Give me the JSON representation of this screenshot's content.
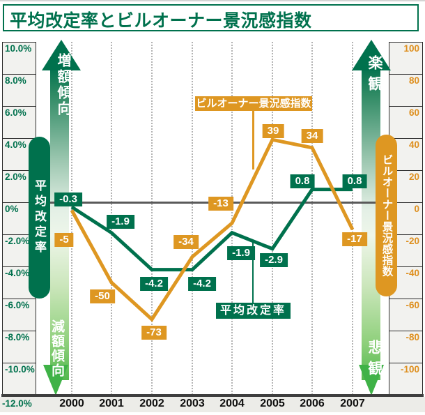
{
  "title": "平均改定率とビルオーナー景況感指数",
  "axes": {
    "left": {
      "labels": [
        "10.0%",
        "8.0%",
        "6.0%",
        "4.0%",
        "2.0%",
        "0%",
        "-2.0%",
        "-4.0%",
        "-6.0%",
        "-8.0%",
        "-10.0%"
      ],
      "bottom_label": "-12.0%"
    },
    "right": {
      "labels": [
        "100",
        "80",
        "60",
        "40",
        "20",
        "0",
        "-20",
        "-40",
        "-60",
        "-80",
        "-100"
      ]
    }
  },
  "annotations": {
    "left_up_arrow": "増額傾向",
    "left_down_arrow": "減額傾向",
    "right_up_arrow": "楽観",
    "right_down_arrow": "悲観",
    "left_capsule": "平均改定率",
    "right_capsule": "ビルオーナー景況感指数",
    "legend_green": "平均改定率",
    "legend_orange": "ビルオーナー景況感指数"
  },
  "colors": {
    "green": "#00714D",
    "orange": "#DE9722",
    "bright_green": "#3FB247",
    "axis_label_orange": "#DE8F1E"
  },
  "chart_data": {
    "type": "line",
    "categories": [
      "2000",
      "2001",
      "2002",
      "2003",
      "2004",
      "2005",
      "2006",
      "2007"
    ],
    "series": [
      {
        "name": "平均改定率",
        "axis": "left",
        "color": "#00714D",
        "values": [
          -0.3,
          -1.9,
          -4.2,
          -4.2,
          -1.9,
          -2.9,
          0.8,
          0.8
        ],
        "labels": [
          "-0.3",
          "-1.9",
          "-4.2",
          "-4.2",
          "-1.9",
          "-2.9",
          "0.8",
          "0.8"
        ]
      },
      {
        "name": "ビルオーナー景況感指数",
        "axis": "right",
        "color": "#DE9722",
        "values": [
          -5,
          -50,
          -73,
          -34,
          -13,
          39,
          34,
          -17
        ],
        "labels": [
          "-5",
          "-50",
          "-73",
          "-34",
          "-13",
          "39",
          "34",
          "-17"
        ]
      }
    ],
    "left_axis_range": [
      -12,
      10
    ],
    "right_axis_range": [
      -100,
      100
    ],
    "left_axis_unit": "%",
    "grid": "vertical-dotted",
    "zero_line": true
  }
}
